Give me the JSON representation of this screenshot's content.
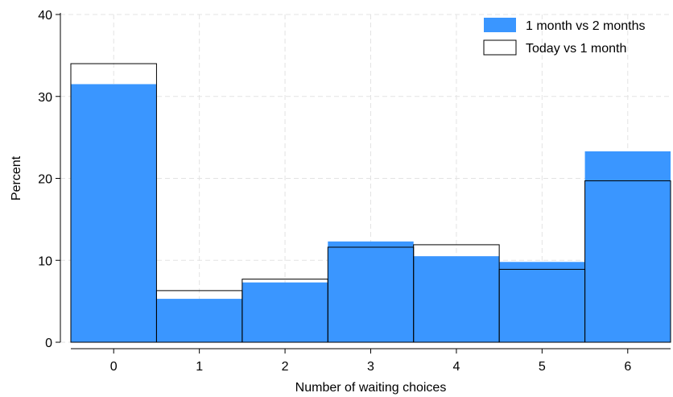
{
  "chart_data": {
    "type": "bar",
    "xlabel": "Number of waiting choices",
    "ylabel": "Percent",
    "categories": [
      "0",
      "1",
      "2",
      "3",
      "4",
      "5",
      "6"
    ],
    "ylim": [
      0,
      40
    ],
    "yticks": [
      "0",
      "10",
      "20",
      "30",
      "40"
    ],
    "grid": true,
    "legend_position": "top-right",
    "series": [
      {
        "name": "1 month vs 2 months",
        "style": "filled",
        "color": "#3a96ff",
        "values": [
          31.5,
          5.3,
          7.3,
          12.3,
          10.5,
          9.8,
          23.3
        ]
      },
      {
        "name": "Today vs 1 month",
        "style": "outline",
        "color": "#000000",
        "values": [
          34.0,
          6.3,
          7.7,
          11.6,
          11.9,
          8.9,
          19.7
        ]
      }
    ]
  }
}
